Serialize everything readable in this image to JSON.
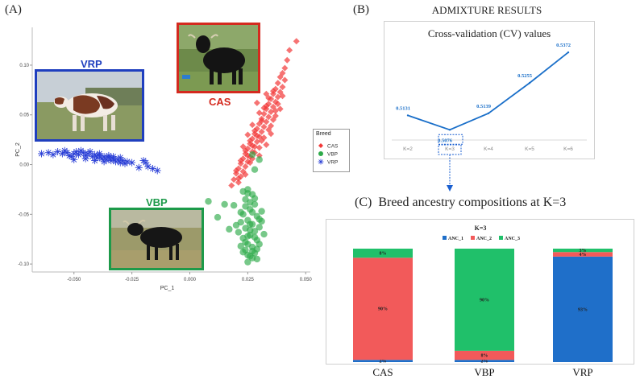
{
  "panel_a": {
    "label": "(A)",
    "photos": [
      {
        "breed": "VRP",
        "color": "#1f3fbf"
      },
      {
        "breed": "CAS",
        "color": "#d42a1f"
      },
      {
        "breed": "VBP",
        "color": "#1d9a4a"
      }
    ]
  },
  "panel_b": {
    "label": "(B)",
    "heading": "ADMIXTURE RESULTS"
  },
  "panel_c": {
    "label": "(C)",
    "heading": "Breed ancestry compositions at K=3"
  },
  "colors": {
    "cas": "#f23838",
    "vbp": "#2eaa4a",
    "vrp": "#2a3fd6",
    "cv_line": "#1a6fc9",
    "anc1": "#1f6fc9",
    "anc2": "#f25a5a",
    "anc3": "#20c06a",
    "box_cas": "#d42a1f",
    "box_vbp": "#1d9a4a",
    "box_vrp": "#1f3fbf"
  },
  "chart_data": [
    {
      "type": "scatter",
      "xlabel": "PC_1",
      "ylabel": "PC_2",
      "xlim": [
        -0.068,
        0.052
      ],
      "ylim": [
        -0.108,
        0.138
      ],
      "xticks": [
        -0.05,
        -0.025,
        0,
        0.025,
        0.05
      ],
      "xtick_labels": [
        "-0.050",
        "-0.025",
        "0.000",
        "0.025",
        "0.050"
      ],
      "yticks": [
        -0.1,
        -0.05,
        0,
        0.05,
        0.1
      ],
      "ytick_labels": [
        "-0.10",
        "-0.05",
        "0.00",
        "0.05",
        "0.10"
      ],
      "grid": false,
      "legend_title": "Breed",
      "legend_position": "right",
      "series": [
        {
          "name": "CAS",
          "marker": "diamond",
          "points": [
            [
              0.046,
              0.124
            ],
            [
              0.043,
              0.115
            ],
            [
              0.042,
              0.105
            ],
            [
              0.041,
              0.097
            ],
            [
              0.04,
              0.092
            ],
            [
              0.039,
              0.088
            ],
            [
              0.041,
              0.085
            ],
            [
              0.038,
              0.082
            ],
            [
              0.04,
              0.078
            ],
            [
              0.037,
              0.076
            ],
            [
              0.039,
              0.073
            ],
            [
              0.036,
              0.071
            ],
            [
              0.038,
              0.068
            ],
            [
              0.035,
              0.066
            ],
            [
              0.037,
              0.063
            ],
            [
              0.034,
              0.061
            ],
            [
              0.036,
              0.058
            ],
            [
              0.033,
              0.056
            ],
            [
              0.035,
              0.053
            ],
            [
              0.032,
              0.051
            ],
            [
              0.034,
              0.048
            ],
            [
              0.031,
              0.046
            ],
            [
              0.033,
              0.043
            ],
            [
              0.03,
              0.041
            ],
            [
              0.032,
              0.038
            ],
            [
              0.029,
              0.036
            ],
            [
              0.031,
              0.033
            ],
            [
              0.028,
              0.031
            ],
            [
              0.03,
              0.028
            ],
            [
              0.027,
              0.026
            ],
            [
              0.029,
              0.023
            ],
            [
              0.026,
              0.021
            ],
            [
              0.028,
              0.018
            ],
            [
              0.025,
              0.016
            ],
            [
              0.027,
              0.013
            ],
            [
              0.024,
              0.011
            ],
            [
              0.026,
              0.008
            ],
            [
              0.023,
              0.006
            ],
            [
              0.025,
              0.003
            ],
            [
              0.022,
              0.001
            ],
            [
              0.024,
              -0.002
            ],
            [
              0.021,
              -0.004
            ],
            [
              0.023,
              -0.007
            ],
            [
              0.02,
              -0.009
            ],
            [
              0.022,
              -0.012
            ],
            [
              0.019,
              -0.015
            ],
            [
              0.021,
              -0.018
            ],
            [
              0.018,
              -0.021
            ],
            [
              0.036,
              0.074
            ],
            [
              0.038,
              0.061
            ],
            [
              0.033,
              0.059
            ],
            [
              0.031,
              0.044
            ],
            [
              0.035,
              0.039
            ],
            [
              0.029,
              0.029
            ],
            [
              0.027,
              0.019
            ],
            [
              0.025,
              0.009
            ],
            [
              0.032,
              0.027
            ],
            [
              0.03,
              0.017
            ],
            [
              0.034,
              0.067
            ],
            [
              0.039,
              0.056
            ],
            [
              0.037,
              0.049
            ],
            [
              0.028,
              0.034
            ],
            [
              0.026,
              0.024
            ],
            [
              0.024,
              0.014
            ],
            [
              0.022,
              0.004
            ],
            [
              0.02,
              -0.006
            ],
            [
              0.033,
              0.071
            ],
            [
              0.036,
              0.045
            ],
            [
              0.03,
              0.052
            ],
            [
              0.027,
              0.04
            ],
            [
              0.025,
              0.03
            ],
            [
              0.023,
              0.018
            ],
            [
              0.04,
              0.069
            ],
            [
              0.034,
              0.035
            ],
            [
              0.031,
              0.024
            ],
            [
              0.028,
              0.012
            ],
            [
              0.026,
              0.002
            ],
            [
              0.024,
              -0.01
            ],
            [
              0.029,
              0.062
            ],
            [
              0.032,
              0.057
            ],
            [
              0.037,
              0.054
            ],
            [
              0.035,
              0.031
            ],
            [
              0.027,
              0.006
            ],
            [
              0.021,
              -0.014
            ],
            [
              0.03,
              0.009
            ],
            [
              0.033,
              0.02
            ]
          ]
        },
        {
          "name": "VBP",
          "marker": "circle",
          "points": [
            [
              0.025,
              -0.025
            ],
            [
              0.027,
              -0.03
            ],
            [
              0.024,
              -0.035
            ],
            [
              0.028,
              -0.04
            ],
            [
              0.026,
              -0.045
            ],
            [
              0.023,
              -0.05
            ],
            [
              0.029,
              -0.052
            ],
            [
              0.025,
              -0.056
            ],
            [
              0.027,
              -0.06
            ],
            [
              0.024,
              -0.064
            ],
            [
              0.028,
              -0.067
            ],
            [
              0.026,
              -0.071
            ],
            [
              0.023,
              -0.074
            ],
            [
              0.029,
              -0.076
            ],
            [
              0.025,
              -0.08
            ],
            [
              0.027,
              -0.083
            ],
            [
              0.024,
              -0.086
            ],
            [
              0.028,
              -0.089
            ],
            [
              0.026,
              -0.092
            ],
            [
              0.029,
              -0.095
            ],
            [
              0.025,
              -0.098
            ],
            [
              0.03,
              -0.063
            ],
            [
              0.022,
              -0.058
            ],
            [
              0.031,
              -0.047
            ],
            [
              0.021,
              -0.068
            ],
            [
              0.03,
              -0.08
            ],
            [
              0.022,
              -0.082
            ],
            [
              0.032,
              -0.07
            ],
            [
              0.02,
              -0.061
            ],
            [
              0.031,
              -0.057
            ],
            [
              0.027,
              -0.048
            ],
            [
              0.024,
              -0.042
            ],
            [
              0.026,
              -0.038
            ],
            [
              0.028,
              -0.034
            ],
            [
              0.025,
              -0.029
            ],
            [
              0.023,
              -0.027
            ],
            [
              0.026,
              -0.066
            ],
            [
              0.028,
              -0.073
            ],
            [
              0.024,
              -0.078
            ],
            [
              0.027,
              -0.087
            ],
            [
              0.029,
              -0.085
            ],
            [
              0.025,
              -0.091
            ],
            [
              0.027,
              -0.094
            ],
            [
              0.023,
              -0.088
            ],
            [
              0.03,
              -0.055
            ],
            [
              0.022,
              -0.048
            ],
            [
              0.019,
              -0.041
            ],
            [
              0.015,
              -0.04
            ],
            [
              0.012,
              -0.053
            ],
            [
              0.008,
              -0.037
            ],
            [
              0.017,
              -0.065
            ],
            [
              0.028,
              -0.005
            ],
            [
              0.027,
              0.01
            ],
            [
              0.03,
              0.005
            ],
            [
              0.026,
              -0.06
            ],
            [
              0.025,
              -0.072
            ]
          ]
        },
        {
          "name": "VRP",
          "marker": "star",
          "points": [
            [
              -0.064,
              0.011
            ],
            [
              -0.061,
              0.012
            ],
            [
              -0.059,
              0.01
            ],
            [
              -0.057,
              0.013
            ],
            [
              -0.055,
              0.011
            ],
            [
              -0.053,
              0.012
            ],
            [
              -0.052,
              0.009
            ],
            [
              -0.05,
              0.011
            ],
            [
              -0.049,
              0.013
            ],
            [
              -0.048,
              0.01
            ],
            [
              -0.046,
              0.012
            ],
            [
              -0.045,
              0.009
            ],
            [
              -0.044,
              0.011
            ],
            [
              -0.042,
              0.008
            ],
            [
              -0.041,
              0.01
            ],
            [
              -0.04,
              0.007
            ],
            [
              -0.039,
              0.009
            ],
            [
              -0.038,
              0.006
            ],
            [
              -0.037,
              0.008
            ],
            [
              -0.036,
              0.005
            ],
            [
              -0.035,
              0.007
            ],
            [
              -0.034,
              0.004
            ],
            [
              -0.033,
              0.006
            ],
            [
              -0.032,
              0.003
            ],
            [
              -0.031,
              0.005
            ],
            [
              -0.03,
              0.002
            ],
            [
              -0.029,
              0.004
            ],
            [
              -0.028,
              0.001
            ],
            [
              -0.047,
              0.014
            ],
            [
              -0.051,
              0.008
            ],
            [
              -0.043,
              0.013
            ],
            [
              -0.039,
              0.011
            ],
            [
              -0.035,
              0.009
            ],
            [
              -0.037,
              0.003
            ],
            [
              -0.033,
              0.008
            ],
            [
              -0.045,
              0.006
            ],
            [
              -0.041,
              0.004
            ],
            [
              -0.054,
              0.014
            ],
            [
              -0.03,
              0.007
            ],
            [
              -0.027,
              0.003
            ],
            [
              -0.025,
              0.002
            ],
            [
              -0.022,
              -0.003
            ],
            [
              -0.02,
              0.004
            ],
            [
              -0.018,
              -0.002
            ],
            [
              -0.016,
              -0.004
            ],
            [
              -0.014,
              -0.006
            ],
            [
              -0.019,
              0.002
            ],
            [
              -0.05,
              0.005
            ]
          ]
        }
      ]
    },
    {
      "type": "line",
      "title": "Cross-validation (CV) values",
      "categories": [
        "K=2",
        "K=3",
        "K=4",
        "K=5",
        "K=6"
      ],
      "values": [
        0.5131,
        0.5076,
        0.5139,
        0.5255,
        0.5372
      ],
      "value_labels": [
        "0.5131",
        "0.5076",
        "0.5139",
        "0.5255",
        "0.5372"
      ],
      "highlight": "K=3"
    },
    {
      "type": "bar",
      "stacked": true,
      "title": "K=3",
      "categories": [
        "CAS",
        "VBP",
        "VRP"
      ],
      "series": [
        {
          "name": "ANC_1",
          "values": [
            2,
            2,
            93
          ],
          "labels": [
            "2%",
            "2%",
            "93%"
          ]
        },
        {
          "name": "ANC_2",
          "values": [
            90,
            8,
            4
          ],
          "labels": [
            "90%",
            "8%",
            "4%"
          ]
        },
        {
          "name": "ANC_3",
          "values": [
            8,
            90,
            3
          ],
          "labels": [
            "8%",
            "90%",
            "3%"
          ]
        }
      ]
    }
  ]
}
